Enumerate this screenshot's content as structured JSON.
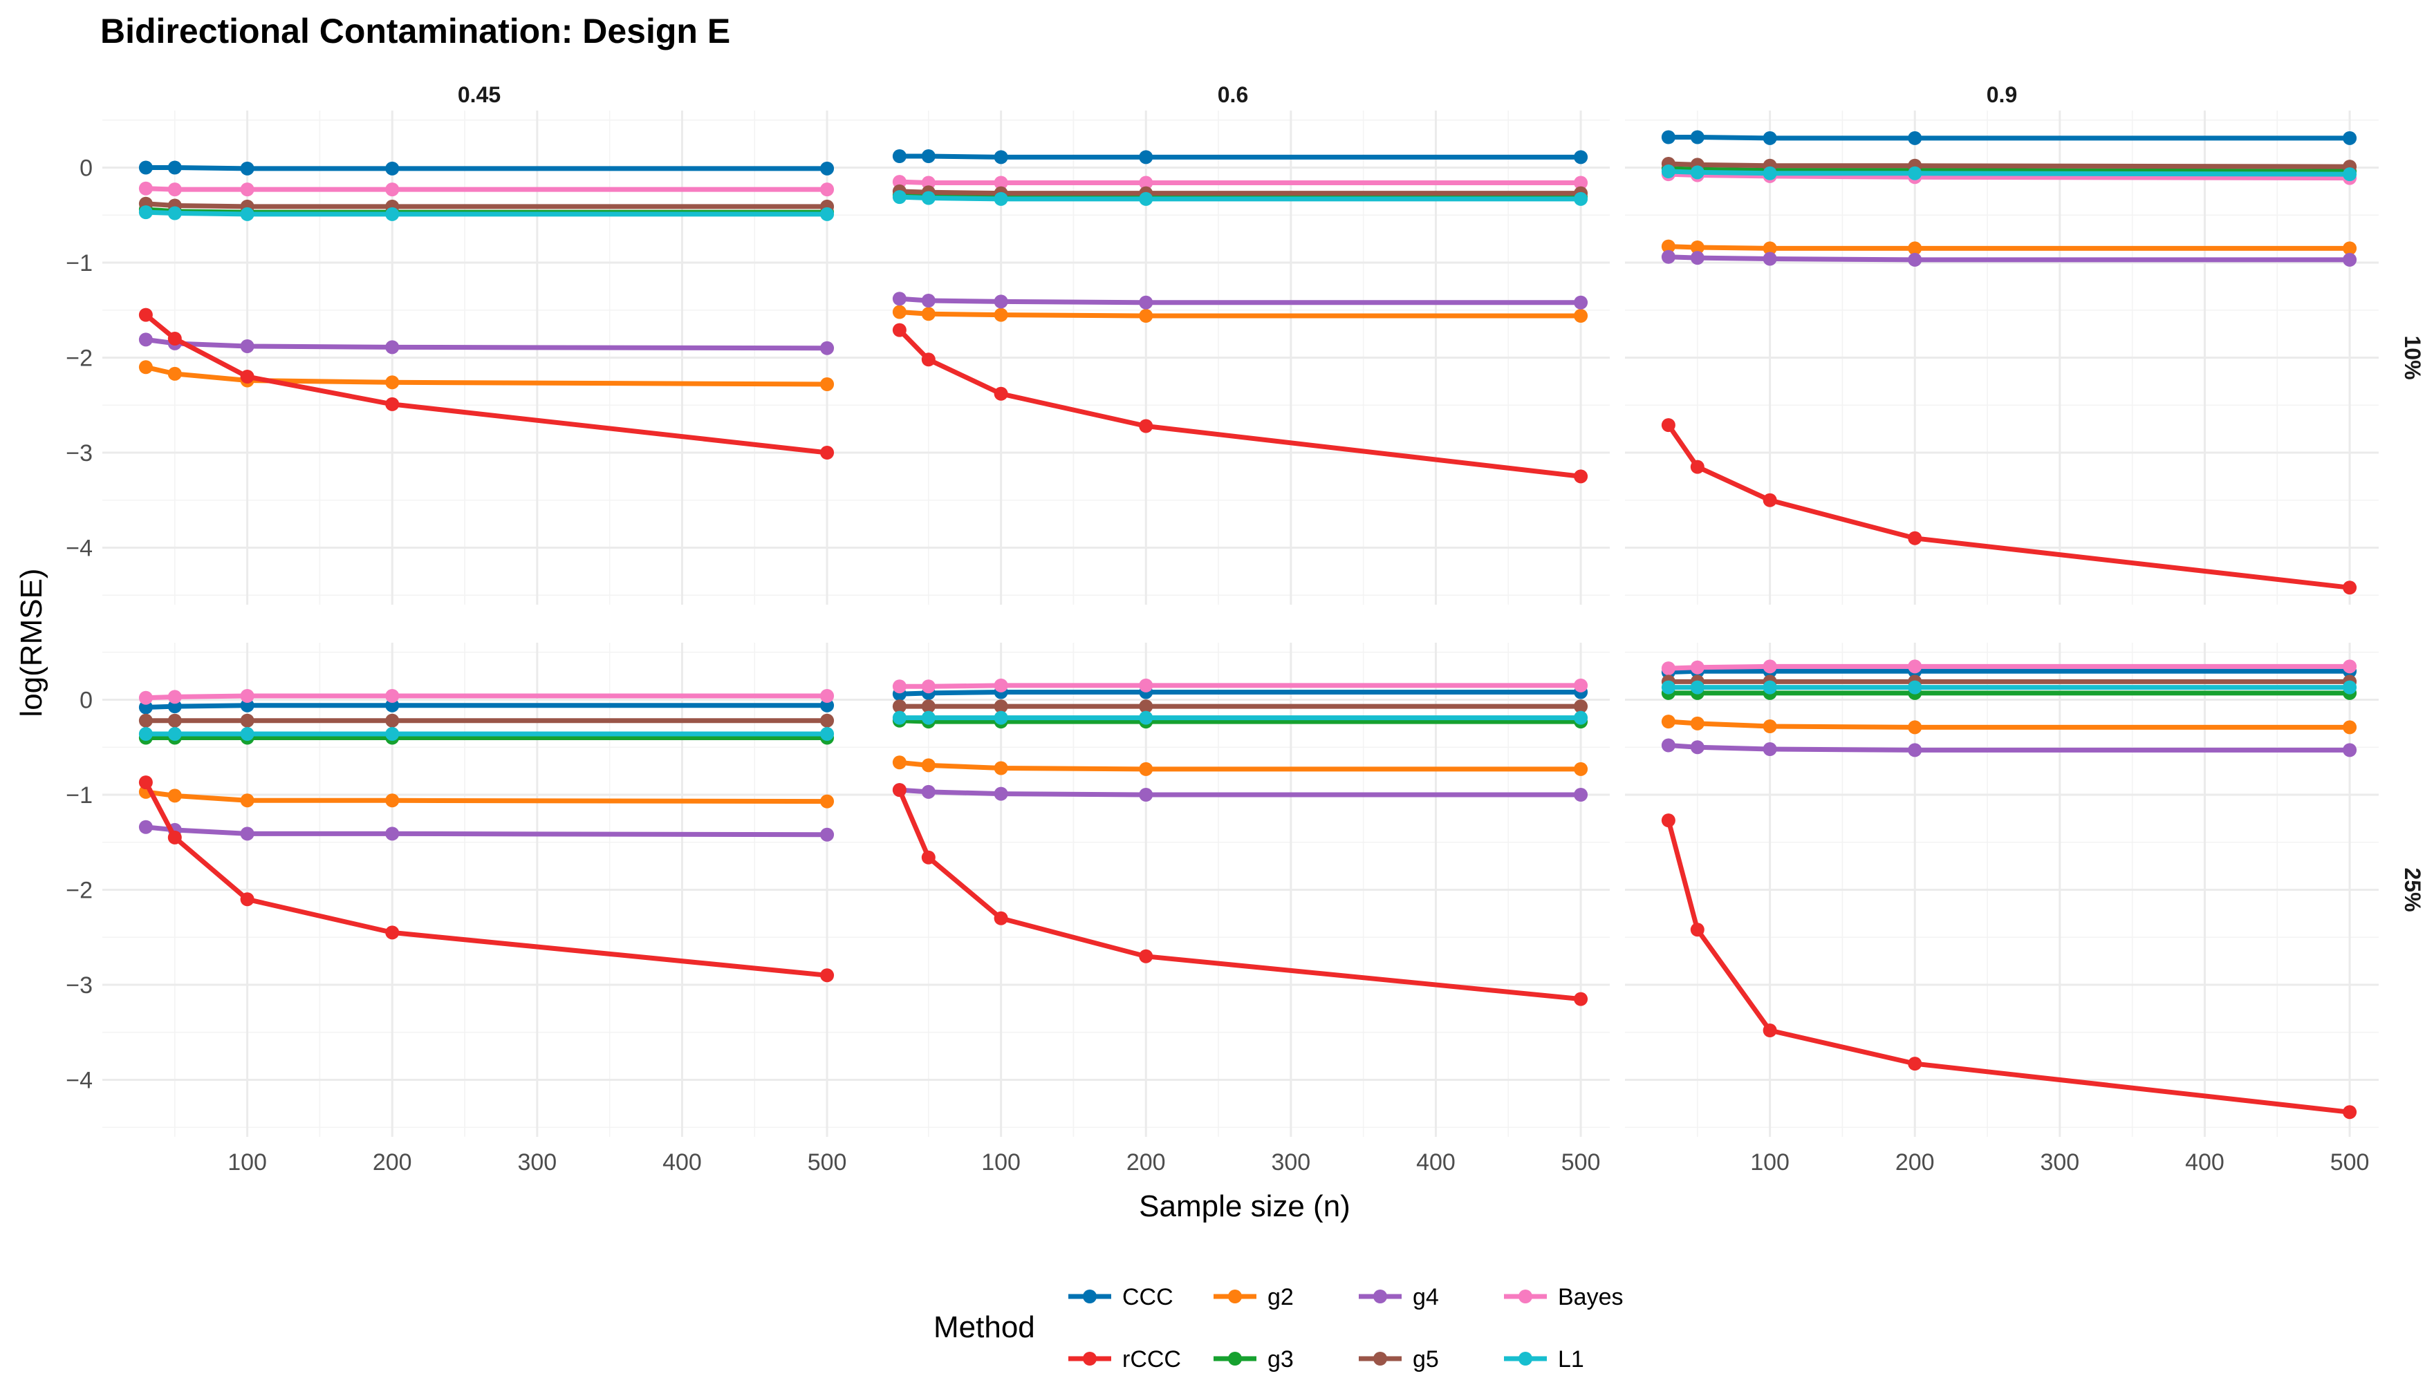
{
  "chart_data": {
    "type": "line",
    "title": "Bidirectional Contamination: Design E",
    "xlabel": "Sample size (n)",
    "ylabel": "log(RMSE)",
    "x": [
      30,
      50,
      100,
      200,
      500
    ],
    "xlim": [
      0,
      520
    ],
    "ylim": [
      -4.6,
      0.6
    ],
    "x_ticks": [
      100,
      200,
      300,
      400,
      500
    ],
    "y_ticks": [
      -4,
      -3,
      -2,
      -1,
      0
    ],
    "x_tick_labels": [
      "100",
      "200",
      "300",
      "400",
      "500"
    ],
    "y_tick_labels": [
      "−4",
      "−3",
      "−2",
      "−1",
      "0"
    ],
    "column_facets": [
      "0.45",
      "0.6",
      "0.9"
    ],
    "row_facets": [
      "10%",
      "25%"
    ],
    "legend": {
      "title": "Method",
      "position": "bottom",
      "entries": [
        "CCC",
        "rCCC",
        "g2",
        "g3",
        "g4",
        "g5",
        "Bayes",
        "L1"
      ]
    },
    "colors": {
      "CCC": "#0072B2",
      "rCCC": "#EE2A2A",
      "g2": "#FF7F0E",
      "g3": "#16A12F",
      "g4": "#9B5FC0",
      "g5": "#9A5548",
      "Bayes": "#F77BC0",
      "L1": "#17BECF"
    },
    "panels": [
      {
        "col": "0.45",
        "row": "10%",
        "series": [
          {
            "name": "CCC",
            "values": [
              0.0,
              0.0,
              -0.01,
              -0.01,
              -0.01
            ]
          },
          {
            "name": "g3",
            "values": [
              -0.44,
              -0.46,
              -0.47,
              -0.47,
              -0.47
            ]
          },
          {
            "name": "Bayes",
            "values": [
              -0.22,
              -0.23,
              -0.23,
              -0.23,
              -0.23
            ]
          },
          {
            "name": "g5",
            "values": [
              -0.38,
              -0.4,
              -0.41,
              -0.41,
              -0.41
            ]
          },
          {
            "name": "L1",
            "values": [
              -0.47,
              -0.48,
              -0.49,
              -0.49,
              -0.49
            ]
          },
          {
            "name": "g2",
            "values": [
              -2.1,
              -2.17,
              -2.24,
              -2.26,
              -2.28
            ]
          },
          {
            "name": "g4",
            "values": [
              -1.81,
              -1.85,
              -1.88,
              -1.89,
              -1.9
            ]
          },
          {
            "name": "rCCC",
            "values": [
              -1.55,
              -1.8,
              -2.2,
              -2.49,
              -3.0
            ]
          }
        ]
      },
      {
        "col": "0.6",
        "row": "10%",
        "series": [
          {
            "name": "CCC",
            "values": [
              0.12,
              0.12,
              0.11,
              0.11,
              0.11
            ]
          },
          {
            "name": "g3",
            "values": [
              -0.29,
              -0.3,
              -0.31,
              -0.31,
              -0.31
            ]
          },
          {
            "name": "Bayes",
            "values": [
              -0.15,
              -0.16,
              -0.16,
              -0.16,
              -0.16
            ]
          },
          {
            "name": "g5",
            "values": [
              -0.25,
              -0.26,
              -0.27,
              -0.27,
              -0.27
            ]
          },
          {
            "name": "L1",
            "values": [
              -0.31,
              -0.32,
              -0.33,
              -0.33,
              -0.33
            ]
          },
          {
            "name": "g2",
            "values": [
              -1.52,
              -1.54,
              -1.55,
              -1.56,
              -1.56
            ]
          },
          {
            "name": "g4",
            "values": [
              -1.38,
              -1.4,
              -1.41,
              -1.42,
              -1.42
            ]
          },
          {
            "name": "rCCC",
            "values": [
              -1.71,
              -2.02,
              -2.38,
              -2.72,
              -3.25
            ]
          }
        ]
      },
      {
        "col": "0.9",
        "row": "10%",
        "series": [
          {
            "name": "CCC",
            "values": [
              0.32,
              0.32,
              0.31,
              0.31,
              0.31
            ]
          },
          {
            "name": "g3",
            "values": [
              -0.01,
              -0.02,
              -0.03,
              -0.03,
              -0.04
            ]
          },
          {
            "name": "Bayes",
            "values": [
              -0.07,
              -0.08,
              -0.09,
              -0.1,
              -0.11
            ]
          },
          {
            "name": "g5",
            "values": [
              0.04,
              0.03,
              0.02,
              0.02,
              0.01
            ]
          },
          {
            "name": "L1",
            "values": [
              -0.04,
              -0.05,
              -0.06,
              -0.06,
              -0.07
            ]
          },
          {
            "name": "g2",
            "values": [
              -0.83,
              -0.84,
              -0.85,
              -0.85,
              -0.85
            ]
          },
          {
            "name": "g4",
            "values": [
              -0.94,
              -0.95,
              -0.96,
              -0.97,
              -0.97
            ]
          },
          {
            "name": "rCCC",
            "values": [
              -2.71,
              -3.15,
              -3.5,
              -3.9,
              -4.42
            ]
          }
        ]
      },
      {
        "col": "0.45",
        "row": "25%",
        "series": [
          {
            "name": "CCC",
            "values": [
              -0.08,
              -0.07,
              -0.06,
              -0.06,
              -0.06
            ]
          },
          {
            "name": "g3",
            "values": [
              -0.4,
              -0.4,
              -0.4,
              -0.4,
              -0.4
            ]
          },
          {
            "name": "Bayes",
            "values": [
              0.02,
              0.03,
              0.04,
              0.04,
              0.04
            ]
          },
          {
            "name": "g5",
            "values": [
              -0.22,
              -0.22,
              -0.22,
              -0.22,
              -0.22
            ]
          },
          {
            "name": "L1",
            "values": [
              -0.36,
              -0.36,
              -0.36,
              -0.36,
              -0.36
            ]
          },
          {
            "name": "g2",
            "values": [
              -0.97,
              -1.01,
              -1.06,
              -1.06,
              -1.07
            ]
          },
          {
            "name": "g4",
            "values": [
              -1.34,
              -1.37,
              -1.41,
              -1.41,
              -1.42
            ]
          },
          {
            "name": "rCCC",
            "values": [
              -0.87,
              -1.45,
              -2.1,
              -2.45,
              -2.9
            ]
          }
        ]
      },
      {
        "col": "0.6",
        "row": "25%",
        "series": [
          {
            "name": "CCC",
            "values": [
              0.06,
              0.07,
              0.08,
              0.08,
              0.08
            ]
          },
          {
            "name": "g3",
            "values": [
              -0.22,
              -0.23,
              -0.23,
              -0.23,
              -0.23
            ]
          },
          {
            "name": "Bayes",
            "values": [
              0.14,
              0.14,
              0.15,
              0.15,
              0.15
            ]
          },
          {
            "name": "g5",
            "values": [
              -0.07,
              -0.07,
              -0.07,
              -0.07,
              -0.07
            ]
          },
          {
            "name": "L1",
            "values": [
              -0.19,
              -0.19,
              -0.19,
              -0.19,
              -0.19
            ]
          },
          {
            "name": "g2",
            "values": [
              -0.66,
              -0.69,
              -0.72,
              -0.73,
              -0.73
            ]
          },
          {
            "name": "g4",
            "values": [
              -0.95,
              -0.97,
              -0.99,
              -1.0,
              -1.0
            ]
          },
          {
            "name": "rCCC",
            "values": [
              -0.95,
              -1.66,
              -2.3,
              -2.7,
              -3.15
            ]
          }
        ]
      },
      {
        "col": "0.9",
        "row": "25%",
        "series": [
          {
            "name": "CCC",
            "values": [
              0.29,
              0.3,
              0.3,
              0.3,
              0.3
            ]
          },
          {
            "name": "g3",
            "values": [
              0.07,
              0.07,
              0.07,
              0.07,
              0.07
            ]
          },
          {
            "name": "Bayes",
            "values": [
              0.33,
              0.34,
              0.35,
              0.35,
              0.35
            ]
          },
          {
            "name": "g5",
            "values": [
              0.19,
              0.19,
              0.19,
              0.19,
              0.19
            ]
          },
          {
            "name": "L1",
            "values": [
              0.13,
              0.13,
              0.13,
              0.13,
              0.13
            ]
          },
          {
            "name": "g2",
            "values": [
              -0.23,
              -0.25,
              -0.28,
              -0.29,
              -0.29
            ]
          },
          {
            "name": "g4",
            "values": [
              -0.48,
              -0.5,
              -0.52,
              -0.53,
              -0.53
            ]
          },
          {
            "name": "rCCC",
            "values": [
              -1.27,
              -2.42,
              -3.48,
              -3.83,
              -4.34
            ]
          }
        ]
      }
    ]
  }
}
